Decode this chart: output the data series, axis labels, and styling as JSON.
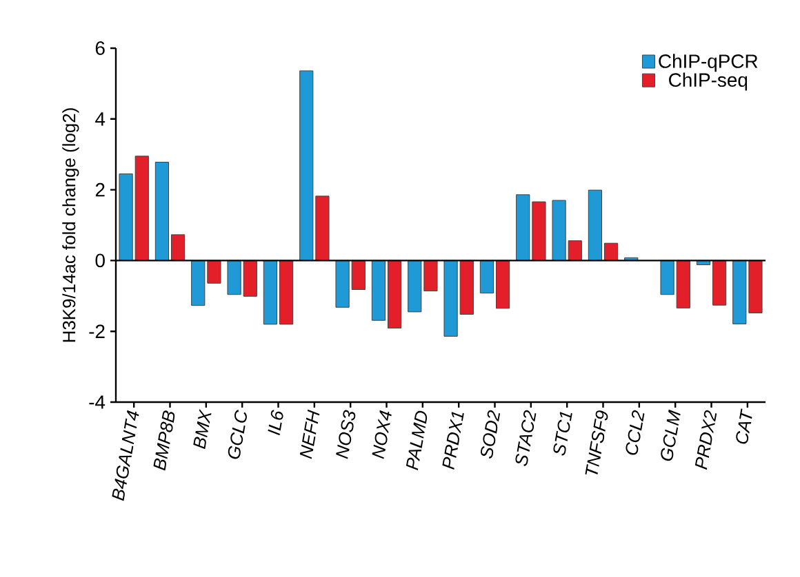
{
  "chart_data": {
    "type": "bar",
    "ylabel": "H3K9/14ac fold change (log2)",
    "categories": [
      "B4GALNT4",
      "BMP8B",
      "BMX",
      "GCLC",
      "IL6",
      "NEFH",
      "NOS3",
      "NOX4",
      "PALMD",
      "PRDX1",
      "SOD2",
      "STAC2",
      "STC1",
      "TNFSF9",
      "CCL2",
      "GCLM",
      "PRDX2",
      "CAT"
    ],
    "series": [
      {
        "name": "ChIP-qPCR",
        "color": "#1f9ad6",
        "values": [
          2.45,
          2.78,
          -1.27,
          -0.96,
          -1.8,
          5.36,
          -1.32,
          -1.69,
          -1.45,
          -2.14,
          -0.92,
          1.86,
          1.7,
          1.99,
          0.08,
          -0.96,
          -0.12,
          -1.79
        ]
      },
      {
        "name": "ChIP-seq",
        "color": "#e3202a",
        "values": [
          2.95,
          0.73,
          -0.64,
          -1.01,
          -1.8,
          1.82,
          -0.82,
          -1.91,
          -0.86,
          -1.52,
          -1.35,
          1.66,
          0.56,
          0.49,
          null,
          -1.34,
          -1.26,
          -1.48
        ]
      }
    ],
    "ylim": [
      -4,
      6
    ],
    "yticks": [
      -4,
      -2,
      0,
      2,
      4,
      6
    ],
    "legend": "top right",
    "ref_lines": [
      {
        "axis": "y",
        "value": 0,
        "color": "#000000"
      }
    ]
  }
}
